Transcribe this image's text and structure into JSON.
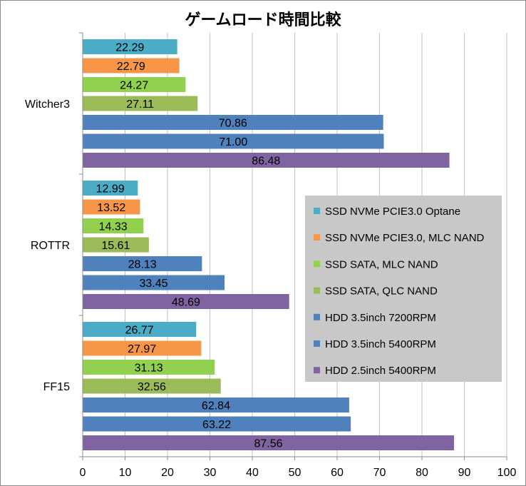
{
  "chart_data": {
    "type": "bar",
    "orientation": "horizontal",
    "title": "ゲームロード時間比較",
    "xlabel": "",
    "ylabel": "",
    "xlim": [
      0,
      100
    ],
    "x_ticks": [
      0,
      10,
      20,
      30,
      40,
      50,
      60,
      70,
      80,
      90,
      100
    ],
    "grid": true,
    "legend_position": "center-right",
    "categories": [
      "Witcher3",
      "ROTTR",
      "FF15"
    ],
    "series": [
      {
        "name": "SSD NVMe PCIE3.0 Optane",
        "color": "#4bacc6",
        "values": [
          22.29,
          12.99,
          26.77
        ],
        "labels": [
          "22.29",
          "12.99",
          "26.77"
        ]
      },
      {
        "name": "SSD NVMe PCIE3.0, MLC NAND",
        "color": "#f79646",
        "values": [
          22.79,
          13.52,
          27.97
        ],
        "labels": [
          "22.79",
          "13.52",
          "27.97"
        ]
      },
      {
        "name": "SSD SATA, MLC NAND",
        "color": "#92d050",
        "values": [
          24.27,
          14.33,
          31.13
        ],
        "labels": [
          "24.27",
          "14.33",
          "31.13"
        ]
      },
      {
        "name": "SSD SATA, QLC NAND",
        "color": "#9bbb59",
        "values": [
          27.11,
          15.61,
          32.56
        ],
        "labels": [
          "27.11",
          "15.61",
          "32.56"
        ]
      },
      {
        "name": "HDD 3.5inch 7200RPM",
        "color": "#4f81bd",
        "values": [
          70.86,
          28.13,
          62.84
        ],
        "labels": [
          "70.86",
          "28.13",
          "62.84"
        ]
      },
      {
        "name": "HDD 3.5inch 5400RPM",
        "color": "#4f81bd",
        "values": [
          71.0,
          33.45,
          63.22
        ],
        "labels": [
          "71.00",
          "33.45",
          "63.22"
        ]
      },
      {
        "name": "HDD 2.5inch 5400RPM",
        "color": "#8064a2",
        "values": [
          86.48,
          48.69,
          87.56
        ],
        "labels": [
          "86.48",
          "48.69",
          "87.56"
        ]
      }
    ],
    "legend_background": "#c8c8c8"
  }
}
